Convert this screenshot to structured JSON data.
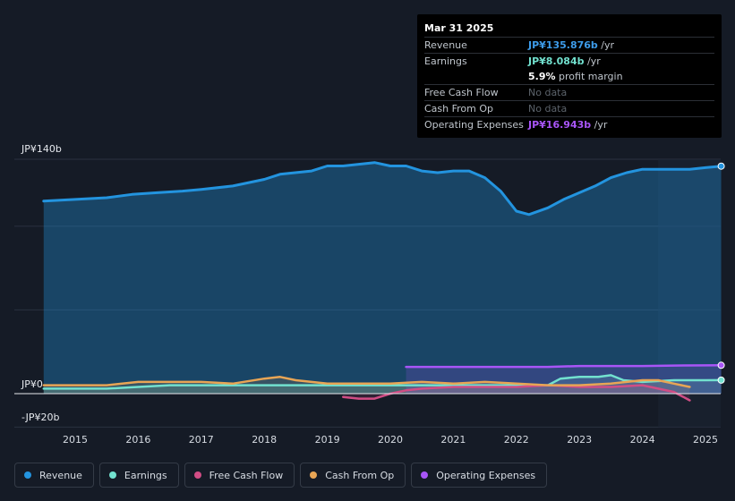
{
  "tooltip": {
    "date": "Mar 31 2025",
    "rows": [
      {
        "label": "Revenue",
        "value": "JP¥135.876b",
        "unit": "/yr"
      },
      {
        "label": "Earnings",
        "value": "JP¥8.084b",
        "unit": "/yr"
      },
      {
        "label": "",
        "value": "5.9%",
        "unit": "profit margin"
      },
      {
        "label": "Free Cash Flow",
        "value": "No data",
        "unit": ""
      },
      {
        "label": "Cash From Op",
        "value": "No data",
        "unit": ""
      },
      {
        "label": "Operating Expenses",
        "value": "JP¥16.943b",
        "unit": "/yr"
      }
    ]
  },
  "legend": [
    {
      "label": "Revenue",
      "color": "#2394df"
    },
    {
      "label": "Earnings",
      "color": "#72e1cf"
    },
    {
      "label": "Free Cash Flow",
      "color": "#d14d85"
    },
    {
      "label": "Cash From Op",
      "color": "#e8a555"
    },
    {
      "label": "Operating Expenses",
      "color": "#a855f7"
    }
  ],
  "chart_data": {
    "type": "area",
    "title": "",
    "xlabel": "",
    "ylabel": "",
    "ylim": [
      -20,
      140
    ],
    "xlim": [
      2014.5,
      2025.25
    ],
    "ytick_labels": [
      "JP¥140b",
      "JP¥0",
      "-JP¥20b"
    ],
    "ytick_values": [
      140,
      0,
      -20
    ],
    "xtick_labels": [
      "2015",
      "2016",
      "2017",
      "2018",
      "2019",
      "2020",
      "2021",
      "2022",
      "2023",
      "2024",
      "2025"
    ],
    "xtick_values": [
      2015,
      2016,
      2017,
      2018,
      2019,
      2020,
      2021,
      2022,
      2023,
      2024,
      2025
    ],
    "forecast_from": 2024.25,
    "series": [
      {
        "name": "Revenue",
        "color": "#2394df",
        "fill": true,
        "x": [
          2014.5,
          2015.0,
          2015.5,
          2015.9,
          2016.3,
          2016.7,
          2017.0,
          2017.5,
          2018.0,
          2018.25,
          2018.75,
          2019.0,
          2019.25,
          2019.5,
          2019.75,
          2020.0,
          2020.25,
          2020.5,
          2020.75,
          2021.0,
          2021.25,
          2021.5,
          2021.75,
          2022.0,
          2022.2,
          2022.5,
          2022.75,
          2023.0,
          2023.25,
          2023.5,
          2023.75,
          2024.0,
          2024.25,
          2024.5,
          2024.75,
          2025.0,
          2025.25
        ],
        "values": [
          115,
          116,
          117,
          119,
          120,
          121,
          122,
          124,
          128,
          131,
          133,
          136,
          136,
          137,
          138,
          136,
          136,
          133,
          132,
          133,
          133,
          129,
          121,
          109,
          107,
          111,
          116,
          120,
          124,
          129,
          132,
          134,
          134,
          134,
          134,
          135,
          135.876
        ]
      },
      {
        "name": "Earnings",
        "color": "#72e1cf",
        "fill": true,
        "x": [
          2014.5,
          2015.0,
          2015.5,
          2016.0,
          2016.5,
          2017.0,
          2017.5,
          2018.0,
          2018.5,
          2019.0,
          2019.5,
          2020.0,
          2020.5,
          2021.0,
          2021.5,
          2022.0,
          2022.5,
          2022.7,
          2023.0,
          2023.3,
          2023.5,
          2023.7,
          2024.0,
          2024.5,
          2025.0,
          2025.25
        ],
        "values": [
          3,
          3,
          3,
          4,
          5,
          5,
          5,
          5,
          5,
          5,
          5,
          5,
          5,
          5,
          5,
          5,
          5,
          9,
          10,
          10,
          11,
          8,
          7,
          8,
          8,
          8.084
        ]
      },
      {
        "name": "Free Cash Flow",
        "color": "#d14d85",
        "fill": true,
        "x": [
          2019.25,
          2019.5,
          2019.75,
          2020.0,
          2020.25,
          2020.5,
          2021.0,
          2021.5,
          2022.0,
          2022.5,
          2023.0,
          2023.5,
          2024.0,
          2024.25,
          2024.5,
          2024.75
        ],
        "values": [
          -2,
          -3,
          -3,
          0,
          2,
          3,
          4,
          4,
          4,
          5,
          4,
          4,
          5,
          3,
          1,
          -4
        ]
      },
      {
        "name": "Cash From Op",
        "color": "#e8a555",
        "fill": true,
        "x": [
          2014.5,
          2015.0,
          2015.5,
          2016.0,
          2016.5,
          2017.0,
          2017.5,
          2018.0,
          2018.25,
          2018.5,
          2019.0,
          2019.5,
          2020.0,
          2020.5,
          2021.0,
          2021.5,
          2022.0,
          2022.5,
          2023.0,
          2023.5,
          2024.0,
          2024.25,
          2024.5,
          2024.75
        ],
        "values": [
          5,
          5,
          5,
          7,
          7,
          7,
          6,
          9,
          10,
          8,
          6,
          6,
          6,
          7,
          6,
          7,
          6,
          5,
          5,
          6,
          8,
          8,
          6,
          4
        ]
      },
      {
        "name": "Operating Expenses",
        "color": "#a855f7",
        "fill": true,
        "x": [
          2020.25,
          2020.75,
          2021.5,
          2022.5,
          2023.0,
          2023.5,
          2024.0,
          2024.5,
          2025.0,
          2025.25
        ],
        "values": [
          16,
          16,
          16,
          16,
          16.5,
          16.5,
          16.5,
          16.8,
          16.9,
          16.943
        ]
      }
    ]
  }
}
